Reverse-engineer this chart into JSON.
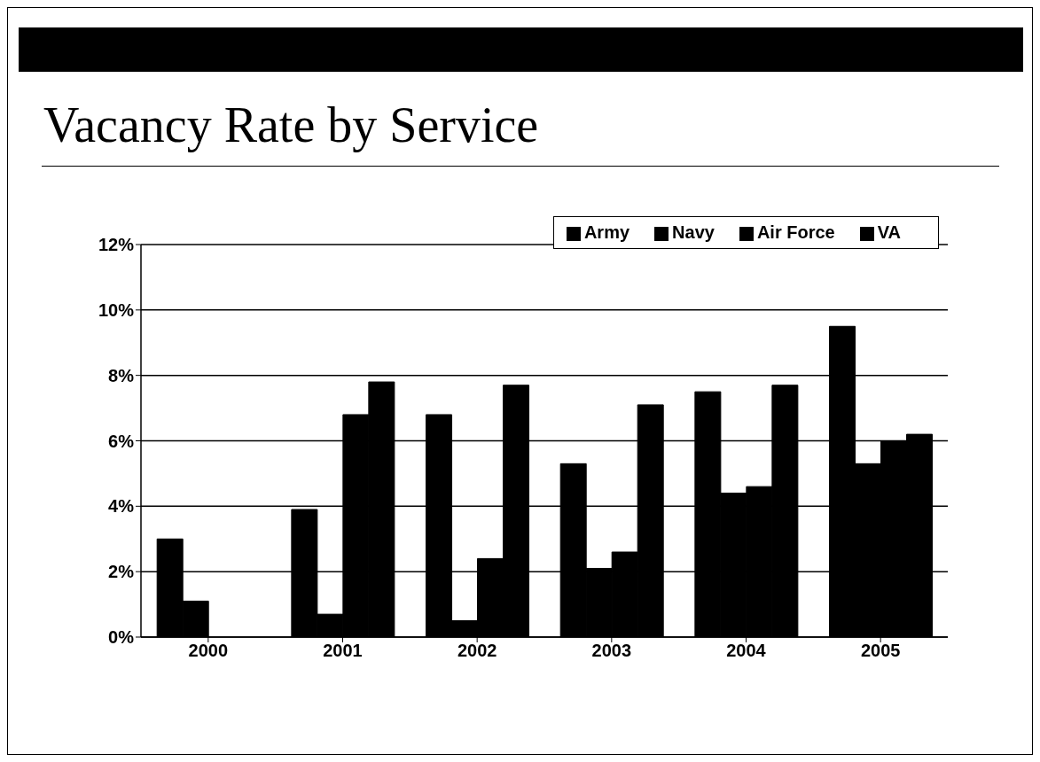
{
  "chart_data": {
    "type": "bar",
    "title": "Vacancy Rate by Service",
    "categories": [
      "2000",
      "2001",
      "2002",
      "2003",
      "2004",
      "2005"
    ],
    "series": [
      {
        "name": "Army",
        "color": "#000000",
        "values": [
          3.0,
          3.9,
          6.8,
          5.3,
          7.5,
          9.5
        ]
      },
      {
        "name": "Navy",
        "color": "#000000",
        "values": [
          1.1,
          0.7,
          0.5,
          2.1,
          4.4,
          5.3
        ]
      },
      {
        "name": "Air Force",
        "color": "#000000",
        "values": [
          0,
          6.8,
          2.4,
          2.6,
          4.6,
          6.0
        ]
      },
      {
        "name": "VA",
        "color": "#000000",
        "values": [
          0,
          7.8,
          7.7,
          7.1,
          7.7,
          6.2
        ]
      }
    ],
    "ylim": [
      0,
      12
    ],
    "yticks": [
      {
        "value": 0,
        "label": "0%"
      },
      {
        "value": 2,
        "label": "2%"
      },
      {
        "value": 4,
        "label": "4%"
      },
      {
        "value": 6,
        "label": "6%"
      },
      {
        "value": 8,
        "label": "8%"
      },
      {
        "value": 10,
        "label": "10%"
      },
      {
        "value": 12,
        "label": "12%"
      }
    ],
    "grid": "y",
    "legend": "top right"
  }
}
